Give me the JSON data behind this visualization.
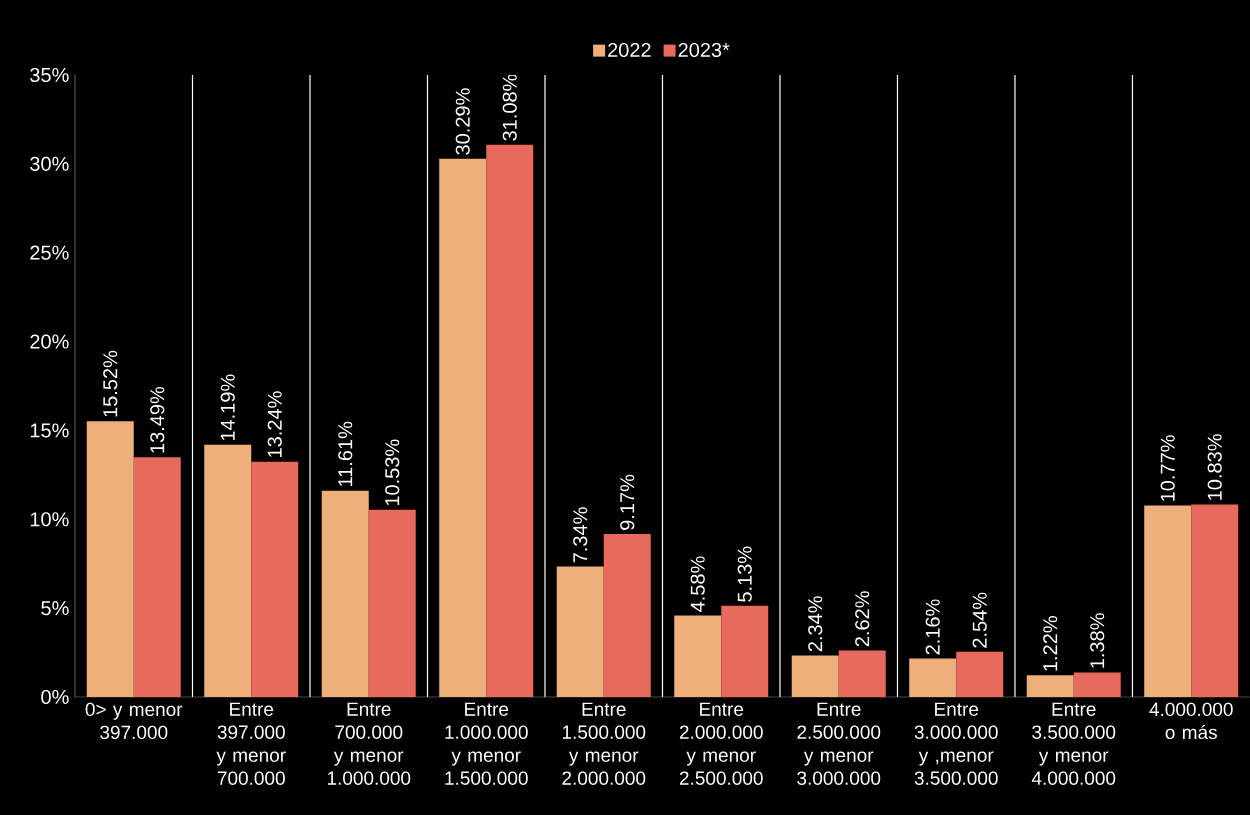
{
  "chart_data": {
    "type": "bar",
    "categories": [
      "0> y menor 397.000",
      "Entre 397.000 y menor 700.000",
      "Entre 700.000 y menor 1.000.000",
      "Entre 1.000.000 y menor 1.500.000",
      "Entre 1.500.000 y menor 2.000.000",
      "Entre 2.000.000 y menor 2.500.000",
      "Entre 2.500.000 y menor 3.000.000",
      "Entre 3.000.000 y ,menor 3.500.000",
      "Entre 3.500.000 y menor 4.000.000",
      "4.000.000 o más"
    ],
    "series": [
      {
        "name": "2022",
        "color": "#edb07a",
        "values": [
          15.52,
          14.19,
          11.61,
          30.29,
          7.34,
          4.58,
          2.34,
          2.16,
          1.22,
          10.77
        ],
        "value_labels": [
          "15.52%",
          "14.19%",
          "11.61%",
          "30.29%",
          "7.34%",
          "4.58%",
          "2.34%",
          "2.16%",
          "1.22%",
          "10.77%"
        ]
      },
      {
        "name": "2023*",
        "color": "#e8695e",
        "values": [
          13.49,
          13.24,
          10.53,
          31.08,
          9.17,
          5.13,
          2.62,
          2.54,
          1.38,
          10.83
        ],
        "value_labels": [
          "13.49%",
          "13.24%",
          "10.53%",
          "31.08%",
          "9.17%",
          "5.13%",
          "2.62%",
          "2.54%",
          "1.38%",
          "10.83%"
        ]
      }
    ],
    "ylim": [
      0,
      35
    ],
    "yticks": [
      {
        "value": 0,
        "label": "0%"
      },
      {
        "value": 5,
        "label": "5%"
      },
      {
        "value": 10,
        "label": "10%"
      },
      {
        "value": 15,
        "label": "15%"
      },
      {
        "value": 20,
        "label": "20%"
      },
      {
        "value": 25,
        "label": "25%"
      },
      {
        "value": 30,
        "label": "30%"
      },
      {
        "value": 35,
        "label": "35%"
      }
    ],
    "grid": "x",
    "legend": "top"
  }
}
